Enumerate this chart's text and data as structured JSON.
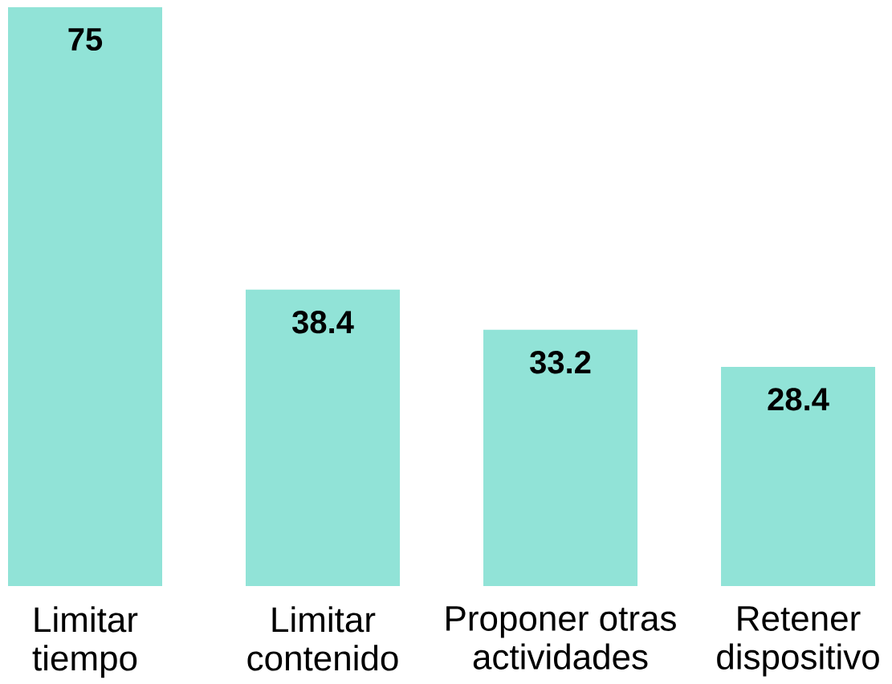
{
  "chart_data": {
    "type": "bar",
    "categories": [
      "Limitar tiempo",
      "Limitar contenido",
      "Proponer otras actividades",
      "Retener dispositivo"
    ],
    "values": [
      75,
      38.4,
      33.2,
      28.4
    ],
    "color": "#91e3d7",
    "data_labels": true
  }
}
